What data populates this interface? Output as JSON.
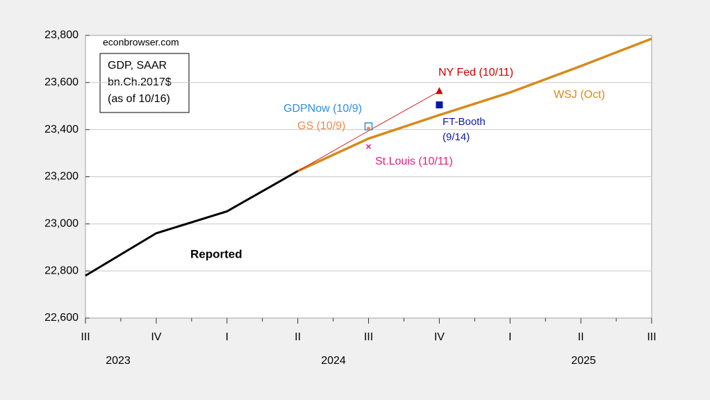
{
  "chart_data": {
    "type": "line",
    "categories": [
      "III",
      "IV",
      "I",
      "II",
      "III",
      "IV",
      "I",
      "II",
      "III"
    ],
    "year_labels": [
      "2023",
      "2024",
      "2025"
    ],
    "annotations": [
      "econbrowser.com",
      "GDP, SAAR",
      "bn.Ch.2017$",
      "(as of 10/16)"
    ],
    "ylim": [
      22600,
      23800
    ],
    "yticks": [
      {
        "value": 22600,
        "label": "22,600"
      },
      {
        "value": 22800,
        "label": "22,800"
      },
      {
        "value": 23000,
        "label": "23,000"
      },
      {
        "value": 23200,
        "label": "23,200"
      },
      {
        "value": 23400,
        "label": "23,400"
      },
      {
        "value": 23600,
        "label": "23,600"
      },
      {
        "value": 23800,
        "label": "23,800"
      }
    ],
    "grid": true,
    "series": [
      {
        "name": "Reported",
        "color": "#000000",
        "marker": "line",
        "values": [
          22780,
          22960,
          23053,
          23224,
          null,
          null,
          null,
          null,
          null
        ]
      },
      {
        "name": "WSJ (Oct)",
        "color": "#d68a1a",
        "marker": "line",
        "values": [
          null,
          null,
          null,
          23224,
          23362,
          23462,
          23558,
          23670,
          23786
        ]
      },
      {
        "name": "NY Fed (10/11)",
        "color": "#cc0000",
        "marker": "triangle",
        "values": [
          null,
          null,
          null,
          23224,
          23395,
          23563,
          null,
          null,
          null
        ]
      },
      {
        "name": "GDPNow (10/9)",
        "color": "#2e8fe0",
        "marker": "square-open",
        "values": [
          null,
          null,
          null,
          null,
          23414,
          null,
          null,
          null,
          null
        ]
      },
      {
        "name": "GS (10/9)",
        "color": "#f08a4b",
        "marker": "dot",
        "values": [
          null,
          null,
          null,
          null,
          23405,
          null,
          null,
          null,
          null
        ]
      },
      {
        "name": "St.Louis (10/11)",
        "color": "#e0207f",
        "marker": "x",
        "values": [
          null,
          null,
          null,
          null,
          23328,
          null,
          null,
          null,
          null
        ]
      },
      {
        "name": "FT-Booth (9/14)",
        "color": "#0a1aa0",
        "marker": "square",
        "values": [
          null,
          null,
          null,
          null,
          null,
          23505,
          null,
          null,
          null
        ]
      }
    ]
  }
}
